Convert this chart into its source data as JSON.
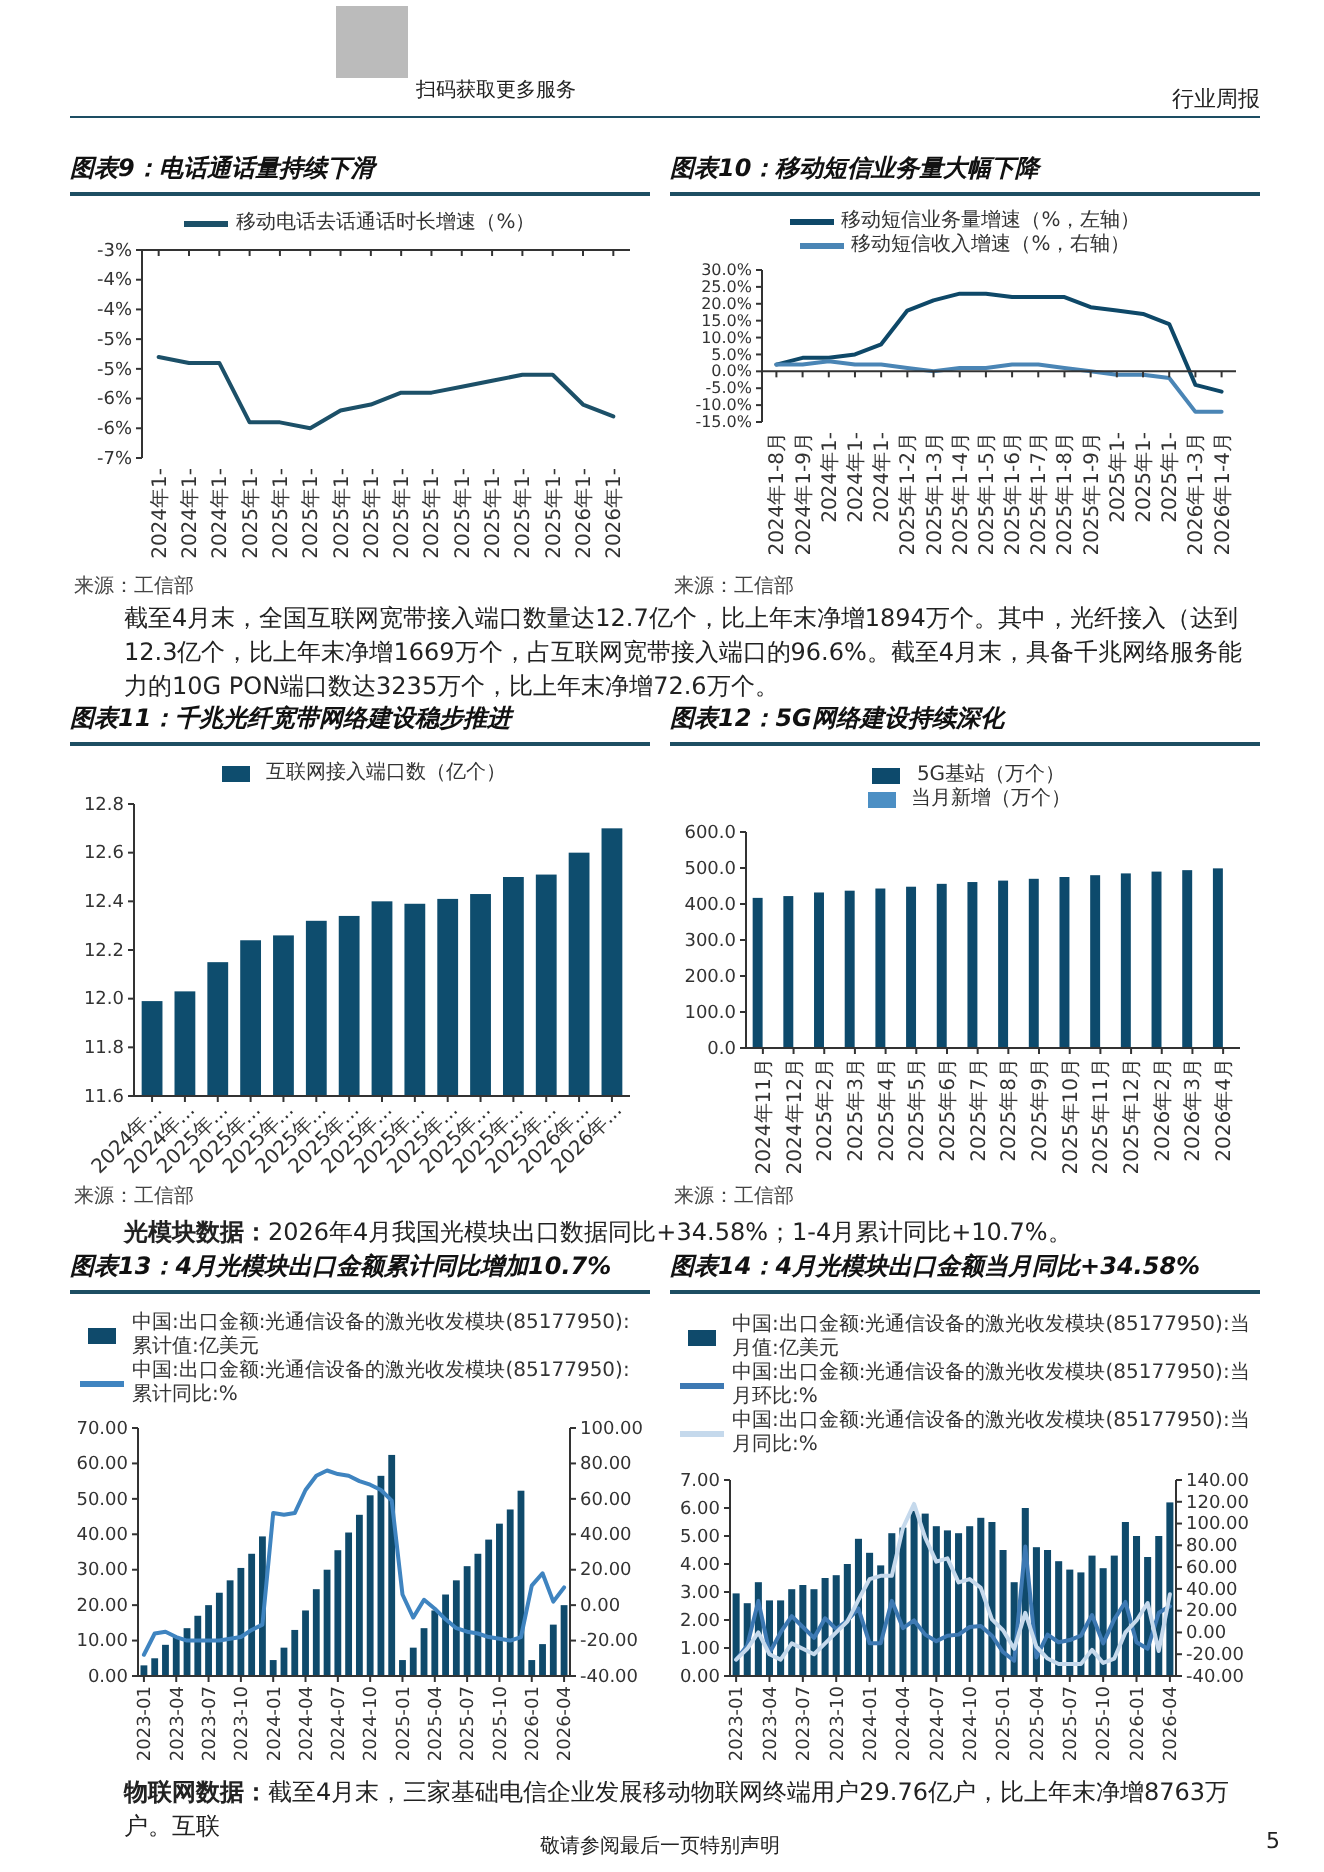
{
  "chart_data": [
    {
      "type": "line",
      "title": "图表9：电话通话量持续下滑",
      "categories": [
        "2024年1-",
        "2024年1-",
        "2024年1-",
        "2025年1-",
        "2025年1-",
        "2025年1-",
        "2025年1-",
        "2025年1-",
        "2025年1-",
        "2025年1-",
        "2025年1-",
        "2025年1-",
        "2025年1-",
        "2025年1-",
        "2026年1-",
        "2026年1-"
      ],
      "series": [
        {
          "name": "移动电话去话通话时长增速（%）",
          "color": "#1c5068",
          "values": [
            -4.8,
            -4.9,
            -4.9,
            -5.9,
            -5.9,
            -6.0,
            -5.7,
            -5.6,
            -5.4,
            -5.4,
            -5.3,
            -5.2,
            -5.1,
            -5.1,
            -5.6,
            -5.8
          ]
        }
      ],
      "ylim": [
        -6.5,
        -3
      ],
      "yticks": [
        {
          "value": -3,
          "label": "-3%"
        },
        {
          "value": -3.5,
          "label": "-4%"
        },
        {
          "value": -4,
          "label": "-4%"
        },
        {
          "value": -4.5,
          "label": "-5%"
        },
        {
          "value": -5,
          "label": "-5%"
        },
        {
          "value": -5.5,
          "label": "-6%"
        },
        {
          "value": -6,
          "label": "-6%"
        },
        {
          "value": -6.5,
          "label": "-7%"
        }
      ],
      "legend": "top",
      "annotations": [
        "扫码获取更多服务",
        "行业周报",
        "来源：工信部"
      ]
    },
    {
      "type": "line",
      "title": "图表10：移动短信业务量大幅下降",
      "categories": [
        "2024年1-8月",
        "2024年1-9月",
        "2024年1-",
        "2024年1-",
        "2024年1-",
        "2025年1-2月",
        "2025年1-3月",
        "2025年1-4月",
        "2025年1-5月",
        "2025年1-6月",
        "2025年1-7月",
        "2025年1-8月",
        "2025年1-9月",
        "2025年1-",
        "2025年1-",
        "2025年1-",
        "2026年1-3月",
        "2026年1-4月"
      ],
      "series": [
        {
          "name": "移动短信业务量增速（%，左轴）",
          "color": "#0e4868",
          "values": [
            2,
            4,
            4,
            5,
            8,
            18,
            21,
            23,
            23,
            22,
            22,
            22,
            19,
            18,
            17,
            14,
            -4,
            -6
          ]
        },
        {
          "name": "移动短信收入增速（%，右轴）",
          "color": "#4a85b5",
          "values": [
            2,
            2,
            3,
            2,
            2,
            1,
            0,
            1,
            1,
            2,
            2,
            1,
            0,
            -1,
            -1,
            -2,
            -12,
            -12
          ]
        }
      ],
      "ylim": [
        -15,
        30
      ],
      "yticks": [
        {
          "value": -15,
          "label": "-15.0%"
        },
        {
          "value": -10,
          "label": "-10.0%"
        },
        {
          "value": -5,
          "label": "-5.0%"
        },
        {
          "value": 0,
          "label": "0.0%"
        },
        {
          "value": 5,
          "label": "5.0%"
        },
        {
          "value": 10,
          "label": "10.0%"
        },
        {
          "value": 15,
          "label": "15.0%"
        },
        {
          "value": 20,
          "label": "20.0%"
        },
        {
          "value": 25,
          "label": "25.0%"
        },
        {
          "value": 30,
          "label": "30.0%"
        }
      ],
      "legend": "top",
      "annotations": [
        "来源：工信部",
        "截至4月末，全国互联网宽带接入端口数量达12.7亿个，比上年末净增1894万个。其中，光纤接入（达到12.3亿个，比上年末净增1669万个，占互联网宽带接入端口的96.6%。截至4月末，具备千兆网络服务能力的10G PON端口数达3235万个，比上年末净增72.6万个。"
      ]
    },
    {
      "type": "bar",
      "title": "图表11：千兆光纤宽带网络建设稳步推进",
      "categories": [
        "2024年...",
        "2024年...",
        "2025年...",
        "2025年...",
        "2025年...",
        "2025年...",
        "2025年...",
        "2025年...",
        "2025年...",
        "2025年...",
        "2025年...",
        "2025年...",
        "2025年...",
        "2026年...",
        "2026年..."
      ],
      "series": [
        {
          "name": "互联网接入端口数（亿个）",
          "color": "#0e4d6e",
          "values": [
            11.99,
            12.03,
            12.15,
            12.24,
            12.26,
            12.32,
            12.34,
            12.4,
            12.39,
            12.41,
            12.43,
            12.5,
            12.51,
            12.6,
            12.7
          ]
        }
      ],
      "ylim": [
        11.6,
        12.8
      ],
      "yticks": [
        11.6,
        11.8,
        {
          "value": 12,
          "label": "12.0"
        },
        12.2,
        12.4,
        12.6,
        12.8
      ],
      "legend": "top",
      "annotations": [
        "来源：工信部"
      ]
    },
    {
      "type": "bar",
      "title": "图表12：5G网络建设持续深化",
      "categories": [
        "2024年11月",
        "2024年12月",
        "2025年2月",
        "2025年3月",
        "2025年4月",
        "2025年5月",
        "2025年6月",
        "2025年7月",
        "2025年8月",
        "2025年9月",
        "2025年10月",
        "2025年11月",
        "2025年12月",
        "2026年2月",
        "2026年3月",
        "2026年4月"
      ],
      "series": [
        {
          "name": "5G基站（万个）",
          "color": "#0d4a6c",
          "values": [
            417,
            422,
            432,
            437,
            443,
            448,
            456,
            461,
            465,
            470,
            475,
            480,
            485,
            490,
            494,
            499
          ]
        },
        {
          "name": "当月新增（万个）",
          "color": "#4c8fc4",
          "values": [
            null,
            null,
            null,
            null,
            null,
            null,
            null,
            null,
            null,
            null,
            null,
            null,
            null,
            null,
            null,
            null
          ]
        }
      ],
      "ylim": [
        0,
        600
      ],
      "yticks": [
        {
          "value": 0,
          "label": "0.0"
        },
        {
          "value": 100,
          "label": "100.0"
        },
        {
          "value": 200,
          "label": "200.0"
        },
        {
          "value": 300,
          "label": "300.0"
        },
        {
          "value": 400,
          "label": "400.0"
        },
        {
          "value": 500,
          "label": "500.0"
        },
        {
          "value": 600,
          "label": "600.0"
        }
      ],
      "legend": "top",
      "annotations": [
        "来源：工信部",
        "光模块数据：2026年4月我国光模块出口数据同比+34.58%；1-4月累计同比+10.7%。"
      ]
    },
    {
      "type": "bar",
      "title": "图表13：4月光模块出口金额累计同比增加10.7%",
      "categories": [
        "2023-01",
        null,
        null,
        "2023-04",
        null,
        null,
        "2023-07",
        null,
        null,
        "2023-10",
        null,
        null,
        "2024-01",
        null,
        null,
        "2024-04",
        null,
        null,
        "2024-07",
        null,
        null,
        "2024-10",
        null,
        null,
        "2025-01",
        null,
        null,
        "2025-04",
        null,
        null,
        "2025-07",
        null,
        null,
        "2025-10",
        null,
        null,
        "2026-01",
        null,
        null,
        "2026-04"
      ],
      "series": [
        {
          "name": "中国:出口金额:光通信设备的激光收发模块(85177950):累计值:亿美元",
          "color": "#0f4a6b",
          "values": [
            3,
            5,
            8.8,
            11,
            13.5,
            17,
            20,
            23.5,
            27,
            30.5,
            34.5,
            39.4,
            4.5,
            8,
            13,
            18.5,
            24.5,
            30,
            35.5,
            40.5,
            45.5,
            51,
            56.5,
            62.4,
            4.5,
            8,
            13.5,
            18.5,
            23,
            27,
            31,
            34.5,
            38.5,
            43,
            47,
            52.3,
            4.5,
            9,
            14.5,
            20
          ]
        },
        {
          "name": "中国:出口金额:光通信设备的激光收发模块(85177950):累计同比:%",
          "type": "line",
          "axis": "y2",
          "color": "#3f84c0",
          "values": [
            -28,
            -16,
            -15,
            -18,
            -20,
            -20,
            -20,
            -20,
            -19,
            -18,
            -14,
            -11,
            52,
            51,
            52,
            65,
            73,
            76,
            74,
            73,
            70,
            68,
            65,
            59,
            6,
            -7,
            3,
            -2,
            -8,
            -13,
            -15,
            -16,
            -18,
            -19,
            -20,
            -18,
            11,
            18,
            2,
            10
          ]
        }
      ],
      "ylim": [
        0,
        70
      ],
      "yticks": [
        {
          "value": 0,
          "label": "0.00"
        },
        {
          "value": 10,
          "label": "10.00"
        },
        {
          "value": 20,
          "label": "20.00"
        },
        {
          "value": 30,
          "label": "30.00"
        },
        {
          "value": 40,
          "label": "40.00"
        },
        {
          "value": 50,
          "label": "50.00"
        },
        {
          "value": 60,
          "label": "60.00"
        },
        {
          "value": 70,
          "label": "70.00"
        }
      ],
      "y2lim": [
        -40,
        100
      ],
      "y2ticks": [
        {
          "value": -40,
          "label": "-40.00"
        },
        {
          "value": -20,
          "label": "-20.00"
        },
        {
          "value": 0,
          "label": "0.00"
        },
        {
          "value": 20,
          "label": "20.00"
        },
        {
          "value": 40,
          "label": "40.00"
        },
        {
          "value": 60,
          "label": "60.00"
        },
        {
          "value": 80,
          "label": "80.00"
        },
        {
          "value": 100,
          "label": "100.00"
        }
      ],
      "legend": "top"
    },
    {
      "type": "bar",
      "title": "图表14：4月光模块出口金额当月同比+34.58%",
      "categories": [
        "2023-01",
        null,
        null,
        "2023-04",
        null,
        null,
        "2023-07",
        null,
        null,
        "2023-10",
        null,
        null,
        "2024-01",
        null,
        null,
        "2024-04",
        null,
        null,
        "2024-07",
        null,
        null,
        "2024-10",
        null,
        null,
        "2025-01",
        null,
        null,
        "2025-04",
        null,
        null,
        "2025-07",
        null,
        null,
        "2025-10",
        null,
        null,
        "2026-01",
        null,
        null,
        "2026-04"
      ],
      "series": [
        {
          "name": "中国:出口金额:光通信设备的激光收发模块(85177950):当月值:亿美元",
          "color": "#0f4a6b",
          "values": [
            2.95,
            2.6,
            3.35,
            2.7,
            2.7,
            3.1,
            3.25,
            3.1,
            3.5,
            3.6,
            4.0,
            4.9,
            4.4,
            3.95,
            5.1,
            5.3,
            5.9,
            5.8,
            5.35,
            5.2,
            5.1,
            5.35,
            5.65,
            5.5,
            4.5,
            3.35,
            6.0,
            4.6,
            4.5,
            4.1,
            3.8,
            3.7,
            4.3,
            3.85,
            4.3,
            5.5,
            5.0,
            4.25,
            5.0,
            6.2
          ]
        },
        {
          "name": "中国:出口金额:光通信设备的激光收发模块(85177950):当月环比:%",
          "type": "line",
          "axis": "y2",
          "color": "#3d79b3",
          "values": [
            -25,
            -12,
            29,
            -19,
            0,
            15,
            5,
            -5,
            13,
            3,
            11,
            22,
            -10,
            -10,
            29,
            4,
            11,
            -2,
            -8,
            -3,
            -2,
            5,
            6,
            -3,
            -18,
            -26,
            79,
            -23,
            -2,
            -9,
            -7,
            -3,
            16,
            -10,
            12,
            28,
            -9,
            -15,
            18,
            24
          ]
        },
        {
          "name": "中国:出口金额:光通信设备的激光收发模块(85177950):当月同比:%",
          "type": "line",
          "axis": "y2",
          "color": "#c5d9ec",
          "values": [
            -25,
            -15,
            0,
            -20,
            -25,
            -10,
            -15,
            -20,
            -10,
            0,
            10,
            30,
            49,
            52,
            52,
            96,
            118,
            87,
            65,
            68,
            46,
            49,
            41,
            12,
            2,
            -15,
            18,
            -13,
            -24,
            -29,
            -29,
            -29,
            -16,
            -28,
            -24,
            0,
            11,
            27,
            -17,
            35
          ]
        }
      ],
      "ylim": [
        0,
        7
      ],
      "yticks": [
        {
          "value": 0,
          "label": "0.00"
        },
        {
          "value": 1,
          "label": "1.00"
        },
        {
          "value": 2,
          "label": "2.00"
        },
        {
          "value": 3,
          "label": "3.00"
        },
        {
          "value": 4,
          "label": "4.00"
        },
        {
          "value": 5,
          "label": "5.00"
        },
        {
          "value": 6,
          "label": "6.00"
        },
        {
          "value": 7,
          "label": "7.00"
        }
      ],
      "y2lim": [
        -40,
        140
      ],
      "y2ticks": [
        {
          "value": -40,
          "label": "-40.00"
        },
        {
          "value": -20,
          "label": "-20.00"
        },
        {
          "value": 0,
          "label": "0.00"
        },
        {
          "value": 20,
          "label": "20.00"
        },
        {
          "value": 40,
          "label": "40.00"
        },
        {
          "value": 60,
          "label": "60.00"
        },
        {
          "value": 80,
          "label": "80.00"
        },
        {
          "value": 100,
          "label": "100.00"
        },
        {
          "value": 120,
          "label": "120.00"
        },
        {
          "value": 140,
          "label": "140.00"
        }
      ],
      "legend": "top",
      "annotations": [
        "物联网数据：截至4月末，三家基础电信企业发展移动物联网终端用户29.76亿户，比上年末净增8763万户。互联",
        "敬请参阅最后一页特别声明",
        "5"
      ]
    }
  ]
}
